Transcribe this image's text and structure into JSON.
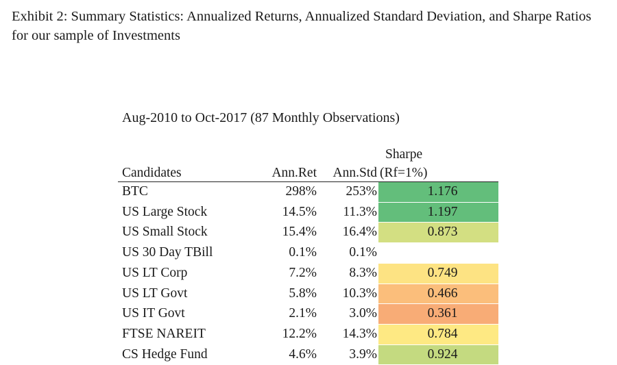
{
  "exhibit": {
    "title": "Exhibit 2: Summary Statistics: Annualized Returns, Annualized Standard Deviation, and Sharpe Ratios for our sample of Investments"
  },
  "table": {
    "subtitle": "Aug-2010 to Oct-2017 (87 Monthly Observations)",
    "headers": {
      "candidates": "Candidates",
      "ann_ret": "Ann.Ret",
      "ann_std": "Ann.Std",
      "sharpe_line1": "Sharpe",
      "sharpe_line2": "(Rf=1%)"
    },
    "rows": [
      {
        "name": "BTC",
        "ret": "298%",
        "std": "253%",
        "sharpe": "1.176",
        "color": "#63be7b"
      },
      {
        "name": "US Large Stock",
        "ret": "14.5%",
        "std": "11.3%",
        "sharpe": "1.197",
        "color": "#63be7b"
      },
      {
        "name": "US Small Stock",
        "ret": "15.4%",
        "std": "16.4%",
        "sharpe": "0.873",
        "color": "#d3df82"
      },
      {
        "name": "US 30 Day TBill",
        "ret": "0.1%",
        "std": "0.1%",
        "sharpe": "",
        "color": "#ffffff"
      },
      {
        "name": "US LT Corp",
        "ret": "7.2%",
        "std": "8.3%",
        "sharpe": "0.749",
        "color": "#fde383"
      },
      {
        "name": "US LT Govt",
        "ret": "5.8%",
        "std": "10.3%",
        "sharpe": "0.466",
        "color": "#fbbe7b"
      },
      {
        "name": "US IT Govt",
        "ret": "2.1%",
        "std": "3.0%",
        "sharpe": "0.361",
        "color": "#f8ac76"
      },
      {
        "name": "FTSE NAREIT",
        "ret": "12.2%",
        "std": "14.3%",
        "sharpe": "0.784",
        "color": "#fee983"
      },
      {
        "name": "CS Hedge Fund",
        "ret": "4.6%",
        "std": "3.9%",
        "sharpe": "0.924",
        "color": "#c4da80"
      }
    ]
  }
}
